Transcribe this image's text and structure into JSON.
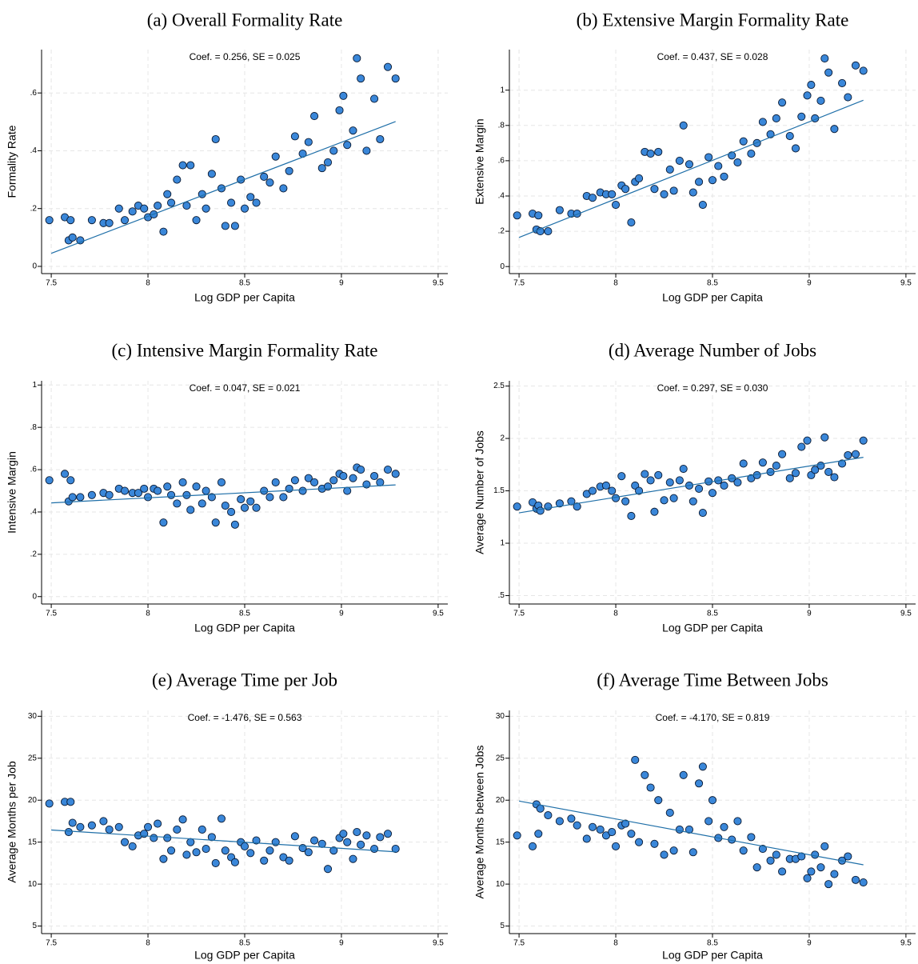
{
  "chart_data": [
    {
      "type": "scatter",
      "title": "(a) Overall Formality Rate",
      "annotation": "Coef. = 0.256, SE = 0.025",
      "xlabel": "Log GDP per Capita",
      "ylabel": "Formality Rate",
      "color": "#3a87d9",
      "line_color": "#1f6fa8",
      "grid": true,
      "x": [
        7.49,
        7.57,
        7.59,
        7.6,
        7.61,
        7.65,
        7.71,
        7.77,
        7.8,
        7.85,
        7.88,
        7.92,
        7.95,
        7.98,
        8.0,
        8.03,
        8.05,
        8.08,
        8.1,
        8.12,
        8.15,
        8.18,
        8.2,
        8.22,
        8.25,
        8.28,
        8.3,
        8.33,
        8.35,
        8.38,
        8.4,
        8.43,
        8.45,
        8.48,
        8.5,
        8.53,
        8.56,
        8.6,
        8.63,
        8.66,
        8.7,
        8.73,
        8.76,
        8.8,
        8.83,
        8.86,
        8.9,
        8.93,
        8.96,
        8.99,
        9.01,
        9.03,
        9.06,
        9.08,
        9.1,
        9.13,
        9.17,
        9.2,
        9.24,
        9.28
      ],
      "y": [
        0.16,
        0.17,
        0.09,
        0.16,
        0.1,
        0.09,
        0.16,
        0.15,
        0.15,
        0.2,
        0.16,
        0.19,
        0.21,
        0.2,
        0.17,
        0.18,
        0.21,
        0.12,
        0.25,
        0.22,
        0.3,
        0.35,
        0.21,
        0.35,
        0.16,
        0.25,
        0.2,
        0.32,
        0.44,
        0.27,
        0.14,
        0.22,
        0.14,
        0.3,
        0.2,
        0.24,
        0.22,
        0.31,
        0.29,
        0.38,
        0.27,
        0.33,
        0.45,
        0.39,
        0.43,
        0.52,
        0.34,
        0.36,
        0.4,
        0.54,
        0.59,
        0.42,
        0.47,
        0.72,
        0.65,
        0.4,
        0.58,
        0.44,
        0.69,
        0.65
      ],
      "fit": {
        "x": [
          7.5,
          9.28
        ],
        "y": [
          0.045,
          0.501
        ]
      },
      "xlim": [
        7.45,
        9.55
      ],
      "ylim": [
        -0.025,
        0.75
      ],
      "xticks": [
        7.5,
        8,
        8.5,
        9,
        9.5
      ],
      "yticks": [
        0,
        {
          "value": 0.2,
          "label": ".2"
        },
        {
          "value": 0.4,
          "label": ".4"
        },
        {
          "value": 0.6,
          "label": ".6"
        }
      ]
    },
    {
      "type": "scatter",
      "title": "(b) Extensive Margin Formality Rate",
      "annotation": "Coef. = 0.437, SE = 0.028",
      "xlabel": "Log GDP per Capita",
      "ylabel": "Extensive Margin",
      "color": "#3a87d9",
      "line_color": "#1f6fa8",
      "grid": true,
      "x": [
        7.49,
        7.57,
        7.59,
        7.6,
        7.61,
        7.65,
        7.71,
        7.77,
        7.8,
        7.85,
        7.88,
        7.92,
        7.95,
        7.98,
        8.0,
        8.03,
        8.05,
        8.08,
        8.1,
        8.12,
        8.15,
        8.18,
        8.2,
        8.22,
        8.25,
        8.28,
        8.3,
        8.33,
        8.35,
        8.38,
        8.4,
        8.43,
        8.45,
        8.48,
        8.5,
        8.53,
        8.56,
        8.6,
        8.63,
        8.66,
        8.7,
        8.73,
        8.76,
        8.8,
        8.83,
        8.86,
        8.9,
        8.93,
        8.96,
        8.99,
        9.01,
        9.03,
        9.06,
        9.08,
        9.1,
        9.13,
        9.17,
        9.2,
        9.24,
        9.28
      ],
      "y": [
        0.29,
        0.3,
        0.21,
        0.29,
        0.2,
        0.2,
        0.32,
        0.3,
        0.3,
        0.4,
        0.39,
        0.42,
        0.41,
        0.41,
        0.35,
        0.46,
        0.44,
        0.25,
        0.48,
        0.5,
        0.65,
        0.64,
        0.44,
        0.65,
        0.41,
        0.55,
        0.43,
        0.6,
        0.8,
        0.58,
        0.42,
        0.48,
        0.35,
        0.62,
        0.49,
        0.57,
        0.51,
        0.63,
        0.59,
        0.71,
        0.64,
        0.7,
        0.82,
        0.75,
        0.84,
        0.93,
        0.74,
        0.67,
        0.85,
        0.97,
        1.03,
        0.84,
        0.94,
        1.18,
        1.1,
        0.78,
        1.04,
        0.96,
        1.14,
        1.11
      ],
      "fit": {
        "x": [
          7.5,
          9.28
        ],
        "y": [
          0.165,
          0.943
        ]
      },
      "xlim": [
        7.45,
        9.55
      ],
      "ylim": [
        -0.04,
        1.23
      ],
      "xticks": [
        7.5,
        8,
        8.5,
        9,
        9.5
      ],
      "yticks": [
        0,
        {
          "value": 0.2,
          "label": ".2"
        },
        {
          "value": 0.4,
          "label": ".4"
        },
        {
          "value": 0.6,
          "label": ".6"
        },
        {
          "value": 0.8,
          "label": ".8"
        },
        1
      ]
    },
    {
      "type": "scatter",
      "title": "(c) Intensive Margin Formality Rate",
      "annotation": "Coef. = 0.047, SE = 0.021",
      "xlabel": "Log GDP per Capita",
      "ylabel": "Intensive Margin",
      "color": "#3a87d9",
      "line_color": "#1f6fa8",
      "grid": true,
      "x": [
        7.49,
        7.57,
        7.59,
        7.6,
        7.61,
        7.65,
        7.71,
        7.77,
        7.8,
        7.85,
        7.88,
        7.92,
        7.95,
        7.98,
        8.0,
        8.03,
        8.05,
        8.08,
        8.1,
        8.12,
        8.15,
        8.18,
        8.2,
        8.22,
        8.25,
        8.28,
        8.3,
        8.33,
        8.35,
        8.38,
        8.4,
        8.43,
        8.45,
        8.48,
        8.5,
        8.53,
        8.56,
        8.6,
        8.63,
        8.66,
        8.7,
        8.73,
        8.76,
        8.8,
        8.83,
        8.86,
        8.9,
        8.93,
        8.96,
        8.99,
        9.01,
        9.03,
        9.06,
        9.08,
        9.1,
        9.13,
        9.17,
        9.2,
        9.24,
        9.28
      ],
      "y": [
        0.55,
        0.58,
        0.45,
        0.55,
        0.47,
        0.47,
        0.48,
        0.49,
        0.48,
        0.51,
        0.5,
        0.49,
        0.49,
        0.51,
        0.47,
        0.51,
        0.5,
        0.35,
        0.52,
        0.48,
        0.44,
        0.54,
        0.48,
        0.41,
        0.52,
        0.44,
        0.5,
        0.47,
        0.35,
        0.54,
        0.43,
        0.4,
        0.34,
        0.46,
        0.42,
        0.45,
        0.42,
        0.5,
        0.47,
        0.54,
        0.47,
        0.51,
        0.55,
        0.5,
        0.56,
        0.54,
        0.51,
        0.52,
        0.55,
        0.58,
        0.57,
        0.5,
        0.56,
        0.61,
        0.6,
        0.53,
        0.57,
        0.54,
        0.6,
        0.58
      ],
      "fit": {
        "x": [
          7.5,
          9.28
        ],
        "y": [
          0.443,
          0.528
        ]
      },
      "xlim": [
        7.45,
        9.55
      ],
      "ylim": [
        -0.035,
        1.02
      ],
      "xticks": [
        7.5,
        8,
        8.5,
        9,
        9.5
      ],
      "yticks": [
        0,
        {
          "value": 0.2,
          "label": ".2"
        },
        {
          "value": 0.4,
          "label": ".4"
        },
        {
          "value": 0.6,
          "label": ".6"
        },
        {
          "value": 0.8,
          "label": ".8"
        },
        1
      ]
    },
    {
      "type": "scatter",
      "title": "(d) Average Number of Jobs",
      "annotation": "Coef. = 0.297, SE = 0.030",
      "xlabel": "Log GDP per Capita",
      "ylabel": "Average Number of Jobs",
      "color": "#3a87d9",
      "line_color": "#1f6fa8",
      "grid": true,
      "x": [
        7.49,
        7.57,
        7.59,
        7.6,
        7.61,
        7.65,
        7.71,
        7.77,
        7.8,
        7.85,
        7.88,
        7.92,
        7.95,
        7.98,
        8.0,
        8.03,
        8.05,
        8.08,
        8.1,
        8.12,
        8.15,
        8.18,
        8.2,
        8.22,
        8.25,
        8.28,
        8.3,
        8.33,
        8.35,
        8.38,
        8.4,
        8.43,
        8.45,
        8.48,
        8.5,
        8.53,
        8.56,
        8.6,
        8.63,
        8.66,
        8.7,
        8.73,
        8.76,
        8.8,
        8.83,
        8.86,
        8.9,
        8.93,
        8.96,
        8.99,
        9.01,
        9.03,
        9.06,
        9.08,
        9.1,
        9.13,
        9.17,
        9.2,
        9.24,
        9.28
      ],
      "y": [
        1.35,
        1.39,
        1.33,
        1.36,
        1.31,
        1.35,
        1.38,
        1.4,
        1.35,
        1.47,
        1.5,
        1.54,
        1.55,
        1.5,
        1.43,
        1.64,
        1.4,
        1.26,
        1.55,
        1.5,
        1.66,
        1.6,
        1.3,
        1.65,
        1.41,
        1.58,
        1.43,
        1.6,
        1.71,
        1.55,
        1.4,
        1.52,
        1.29,
        1.59,
        1.48,
        1.6,
        1.55,
        1.62,
        1.58,
        1.76,
        1.62,
        1.65,
        1.77,
        1.68,
        1.74,
        1.85,
        1.62,
        1.67,
        1.92,
        1.98,
        1.65,
        1.7,
        1.74,
        2.01,
        1.68,
        1.63,
        1.76,
        1.84,
        1.85,
        1.98
      ],
      "fit": {
        "x": [
          7.5,
          9.28
        ],
        "y": [
          1.29,
          1.82
        ]
      },
      "xlim": [
        7.45,
        9.55
      ],
      "ylim": [
        0.42,
        2.55
      ],
      "xticks": [
        7.5,
        8,
        8.5,
        9,
        9.5
      ],
      "yticks": [
        {
          "value": 0.5,
          "label": ".5"
        },
        1,
        1.5,
        2,
        2.5
      ]
    },
    {
      "type": "scatter",
      "title": "(e) Average Time per Job",
      "annotation": "Coef. = -1.476, SE = 0.563",
      "xlabel": "Log GDP per Capita",
      "ylabel": "Average Months per Job",
      "color": "#3a87d9",
      "line_color": "#1f6fa8",
      "grid": true,
      "x": [
        7.49,
        7.57,
        7.59,
        7.6,
        7.61,
        7.65,
        7.71,
        7.77,
        7.8,
        7.85,
        7.88,
        7.92,
        7.95,
        7.98,
        8.0,
        8.03,
        8.05,
        8.08,
        8.1,
        8.12,
        8.15,
        8.18,
        8.2,
        8.22,
        8.25,
        8.28,
        8.3,
        8.33,
        8.35,
        8.38,
        8.4,
        8.43,
        8.45,
        8.48,
        8.5,
        8.53,
        8.56,
        8.6,
        8.63,
        8.66,
        8.7,
        8.73,
        8.76,
        8.8,
        8.83,
        8.86,
        8.9,
        8.93,
        8.96,
        8.99,
        9.01,
        9.03,
        9.06,
        9.08,
        9.1,
        9.13,
        9.17,
        9.2,
        9.24,
        9.28
      ],
      "y": [
        19.6,
        19.8,
        16.2,
        19.8,
        17.3,
        16.8,
        17.0,
        17.5,
        16.5,
        16.8,
        15.0,
        14.5,
        15.8,
        16.0,
        16.8,
        15.5,
        17.2,
        13.0,
        15.5,
        14.0,
        16.5,
        17.7,
        13.5,
        15.0,
        13.8,
        16.5,
        14.2,
        15.6,
        12.5,
        17.8,
        14.0,
        13.2,
        12.6,
        15.0,
        14.5,
        13.7,
        15.2,
        12.8,
        14.0,
        15.0,
        13.2,
        12.8,
        15.7,
        14.3,
        13.8,
        15.2,
        14.8,
        11.8,
        14.0,
        15.5,
        16.0,
        15.0,
        13.0,
        16.2,
        14.7,
        15.8,
        14.2,
        15.6,
        16.0,
        14.2
      ],
      "fit": {
        "x": [
          7.5,
          9.28
        ],
        "y": [
          16.45,
          13.85
        ]
      },
      "xlim": [
        7.45,
        9.55
      ],
      "ylim": [
        4.1,
        30.7
      ],
      "xticks": [
        7.5,
        8,
        8.5,
        9,
        9.5
      ],
      "yticks": [
        5,
        10,
        15,
        20,
        25,
        30
      ]
    },
    {
      "type": "scatter",
      "title": "(f) Average Time Between Jobs",
      "annotation": "Coef. = -4.170, SE = 0.819",
      "xlabel": "Log GDP per Capita",
      "ylabel": "Average Months between Jobs",
      "color": "#3a87d9",
      "line_color": "#1f6fa8",
      "grid": true,
      "x": [
        7.49,
        7.57,
        7.59,
        7.6,
        7.61,
        7.65,
        7.71,
        7.77,
        7.8,
        7.85,
        7.88,
        7.92,
        7.95,
        7.98,
        8.0,
        8.03,
        8.05,
        8.08,
        8.1,
        8.12,
        8.15,
        8.18,
        8.2,
        8.22,
        8.25,
        8.28,
        8.3,
        8.33,
        8.35,
        8.38,
        8.4,
        8.43,
        8.45,
        8.48,
        8.5,
        8.53,
        8.56,
        8.6,
        8.63,
        8.66,
        8.7,
        8.73,
        8.76,
        8.8,
        8.83,
        8.86,
        8.9,
        8.93,
        8.96,
        8.99,
        9.01,
        9.03,
        9.06,
        9.08,
        9.1,
        9.13,
        9.17,
        9.2,
        9.24,
        9.28
      ],
      "y": [
        15.8,
        14.5,
        19.5,
        16.0,
        19.0,
        18.2,
        17.5,
        17.8,
        17.0,
        15.4,
        16.8,
        16.5,
        15.8,
        16.2,
        14.5,
        17.0,
        17.2,
        16.0,
        24.8,
        15.0,
        23.0,
        21.5,
        14.8,
        20.0,
        13.5,
        18.5,
        14.0,
        16.5,
        23.0,
        16.5,
        13.8,
        22.0,
        24.0,
        17.5,
        20.0,
        15.5,
        16.8,
        15.3,
        17.5,
        14.0,
        15.6,
        12.0,
        14.2,
        12.8,
        13.5,
        11.5,
        13.0,
        13.0,
        13.3,
        10.7,
        11.5,
        13.5,
        12.0,
        14.5,
        10.0,
        11.2,
        12.8,
        13.3,
        10.5,
        10.2
      ],
      "fit": {
        "x": [
          7.5,
          9.28
        ],
        "y": [
          19.9,
          12.3
        ]
      },
      "xlim": [
        7.45,
        9.55
      ],
      "ylim": [
        4.1,
        30.7
      ],
      "xticks": [
        7.5,
        8,
        8.5,
        9,
        9.5
      ],
      "yticks": [
        5,
        10,
        15,
        20,
        25,
        30
      ]
    }
  ]
}
